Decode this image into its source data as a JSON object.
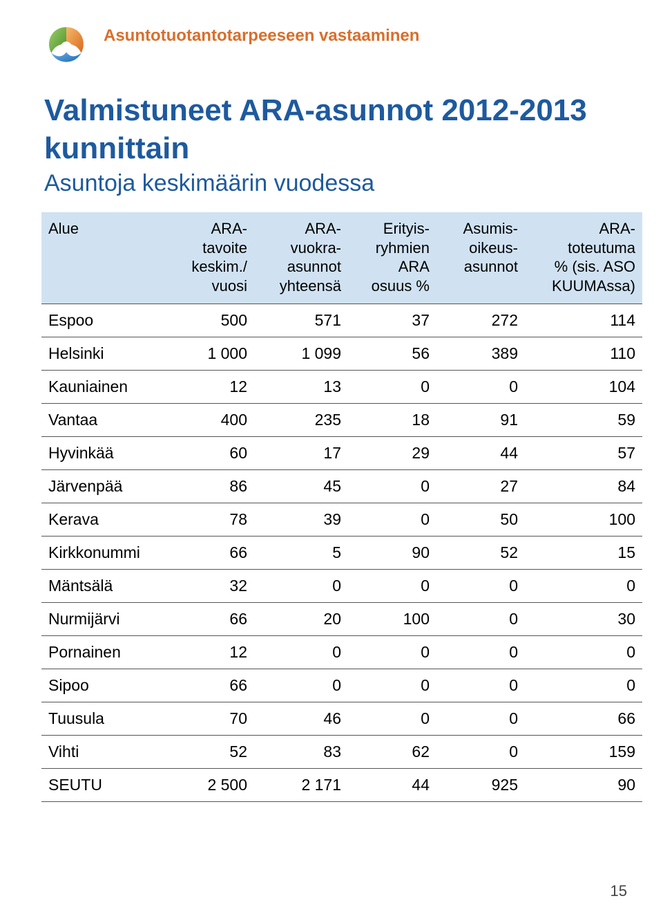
{
  "section_title": "Asuntotuotantotarpeeseen vastaaminen",
  "section_title_color": "#d86f2c",
  "main_title": "Valmistuneet ARA-asunnot 2012-2013 kunnittain",
  "main_title_color": "#1e5a9e",
  "subtitle": "Asuntoja keskimäärin vuodessa",
  "subtitle_color": "#1e5a9e",
  "header_bg_color": "#d0e2f2",
  "border_color": "#555555",
  "logo_colors": {
    "green": "#6fae3e",
    "orange": "#e98a2f",
    "blue": "#2f7fc6"
  },
  "table": {
    "columns": [
      "Alue",
      "ARA-\ntavoite\nkeskim./\nvuosi",
      "ARA-\nvuokra-\nasunnot\nyhteensä",
      "Erityis-\nryhmien\nARA\nosuus %",
      "Asumis-\noikeus-\nasunnot",
      "ARA-\ntoteutuma\n% (sis. ASO\nKUUMAssa)"
    ],
    "rows": [
      [
        "Espoo",
        "500",
        "571",
        "37",
        "272",
        "114"
      ],
      [
        "Helsinki",
        "1 000",
        "1 099",
        "56",
        "389",
        "110"
      ],
      [
        "Kauniainen",
        "12",
        "13",
        "0",
        "0",
        "104"
      ],
      [
        "Vantaa",
        "400",
        "235",
        "18",
        "91",
        "59"
      ],
      [
        "Hyvinkää",
        "60",
        "17",
        "29",
        "44",
        "57"
      ],
      [
        "Järvenpää",
        "86",
        "45",
        "0",
        "27",
        "84"
      ],
      [
        "Kerava",
        "78",
        "39",
        "0",
        "50",
        "100"
      ],
      [
        "Kirkkonummi",
        "66",
        "5",
        "90",
        "52",
        "15"
      ],
      [
        "Mäntsälä",
        "32",
        "0",
        "0",
        "0",
        "0"
      ],
      [
        "Nurmijärvi",
        "66",
        "20",
        "100",
        "0",
        "30"
      ],
      [
        "Pornainen",
        "12",
        "0",
        "0",
        "0",
        "0"
      ],
      [
        "Sipoo",
        "66",
        "0",
        "0",
        "0",
        "0"
      ],
      [
        "Tuusula",
        "70",
        "46",
        "0",
        "0",
        "66"
      ],
      [
        "Vihti",
        "52",
        "83",
        "62",
        "0",
        "159"
      ],
      [
        "SEUTU",
        "2 500",
        "2 171",
        "44",
        "925",
        "90"
      ]
    ]
  },
  "page_number": "15"
}
